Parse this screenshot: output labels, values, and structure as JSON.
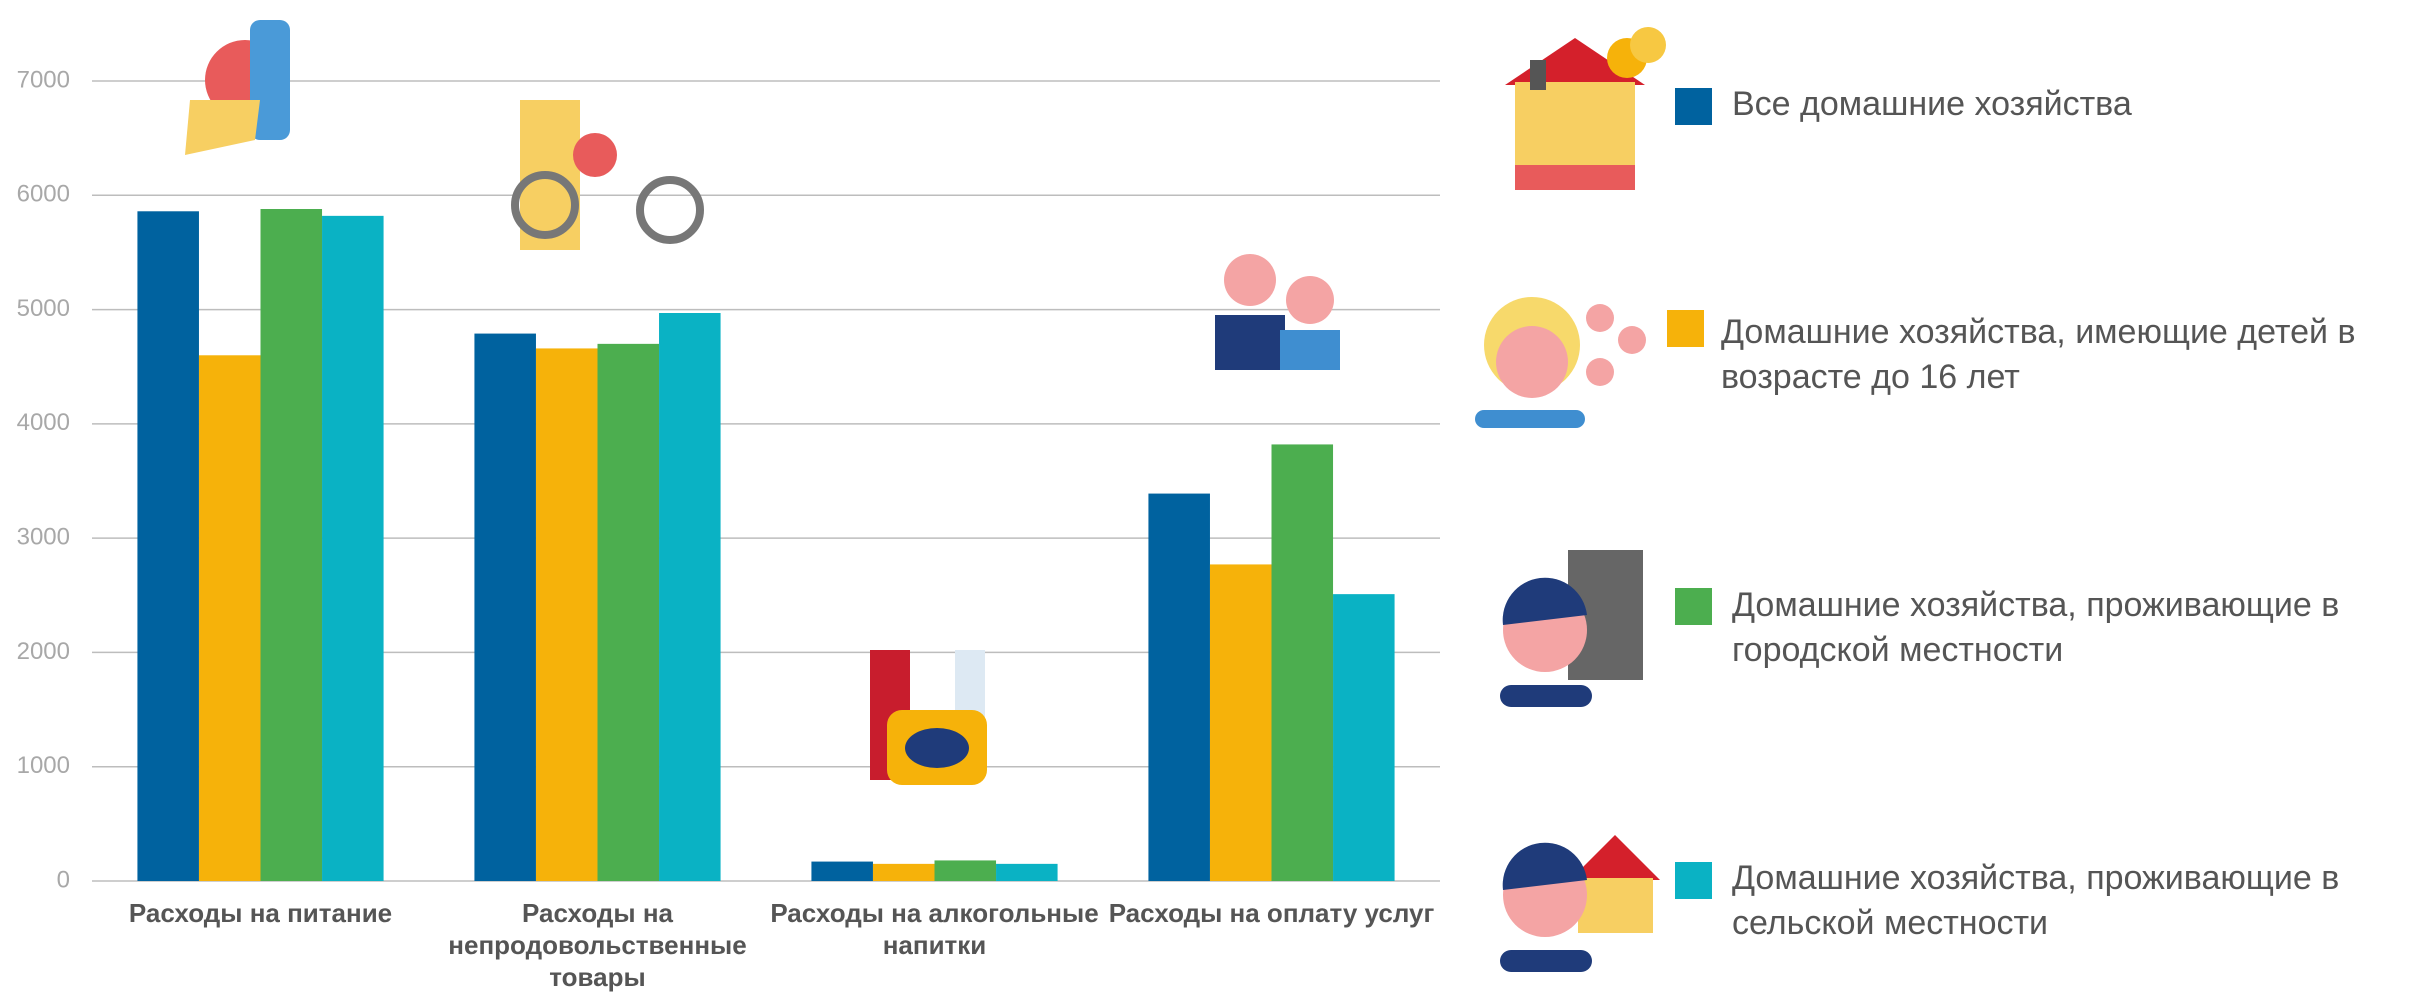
{
  "chart_data": {
    "type": "bar",
    "categories": [
      "Расходы на питание",
      "Расходы на непродовольственные товары",
      "Расходы на алкогольные напитки",
      "Расходы на оплату услуг"
    ],
    "series": [
      {
        "name": "Все домашние хозяйства",
        "color": "#00629f",
        "values": [
          5860,
          4790,
          170,
          3390
        ]
      },
      {
        "name": "Домашние хозяйства, имеющие детей в возрасте до 16 лет",
        "color": "#f6b20a",
        "values": [
          4600,
          4660,
          150,
          2770
        ]
      },
      {
        "name": "Домашние хозяйства, проживающие в городской местности",
        "color": "#4cae4f",
        "values": [
          5880,
          4700,
          180,
          3820
        ]
      },
      {
        "name": "Домашние хозяйства, проживающие в сельской местности",
        "color": "#0ab2c4",
        "values": [
          5820,
          4970,
          150,
          2510
        ]
      }
    ],
    "ylim": [
      0,
      7000
    ],
    "yticks": [
      0,
      1000,
      2000,
      3000,
      4000,
      5000,
      6000,
      7000
    ],
    "grid": true
  }
}
